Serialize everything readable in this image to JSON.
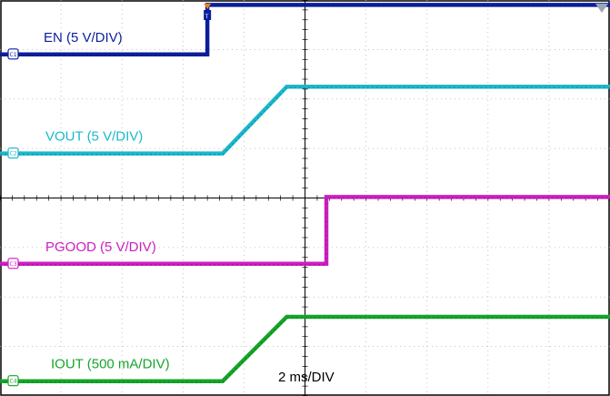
{
  "chart_data": {
    "type": "line",
    "grid": true,
    "x_divisions": 10,
    "y_divisions": 8,
    "timebase_label": "2 ms/DIV",
    "trigger_marker": "T",
    "series": [
      {
        "name": "EN (5 V/DIV)",
        "channel_badge": "C1",
        "color": "#0b1f9e",
        "level": 0.5,
        "points": [
          [
            0,
            0
          ],
          [
            3.4,
            0
          ],
          [
            3.4,
            1
          ],
          [
            10,
            1
          ]
        ]
      },
      {
        "name": "VOUT (5 V/DIV)",
        "channel_badge": "C2",
        "color": "#1bb8cc",
        "level": 2.3,
        "points": [
          [
            0,
            0
          ],
          [
            3.65,
            0
          ],
          [
            4.7,
            1.35
          ],
          [
            10,
            1.35
          ]
        ]
      },
      {
        "name": "PGOOD (5 V/DIV)",
        "channel_badge": "C3",
        "color": "#cc1fc2",
        "level": 4.53,
        "points": [
          [
            0,
            0
          ],
          [
            5.35,
            0
          ],
          [
            5.35,
            1.35
          ],
          [
            10,
            1.35
          ]
        ]
      },
      {
        "name": "IOUT (500 mA/DIV)",
        "channel_badge": "C4",
        "color": "#16a52a",
        "level": 6.9,
        "points": [
          [
            0,
            0
          ],
          [
            3.65,
            0
          ],
          [
            4.7,
            1.3
          ],
          [
            10,
            1.3
          ]
        ]
      }
    ]
  }
}
